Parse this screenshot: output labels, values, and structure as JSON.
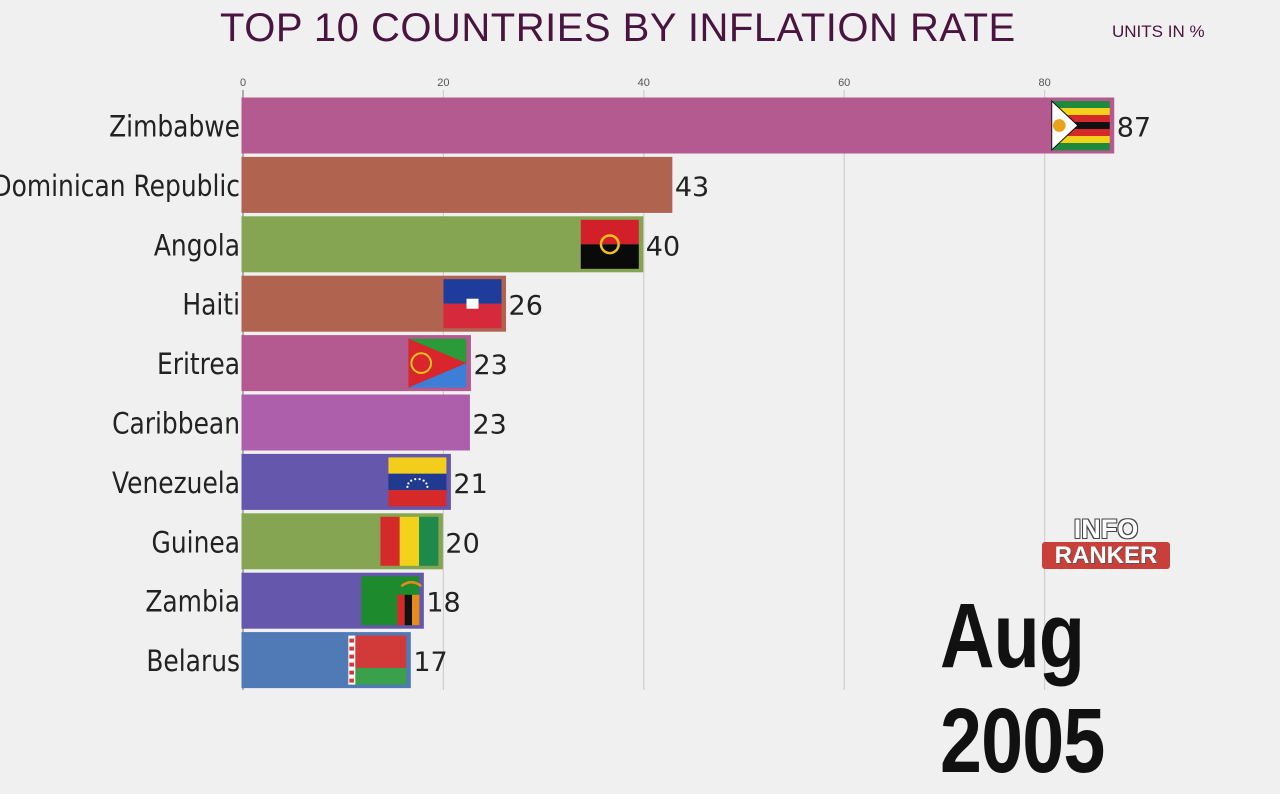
{
  "header": {
    "title": "TOP 10 COUNTRIES BY INFLATION RATE",
    "units": "UNITS IN %"
  },
  "date_label": "Aug 2005",
  "logo": {
    "line1": "INFO",
    "line2": "RANKER"
  },
  "chart_data": {
    "type": "bar",
    "orientation": "horizontal",
    "xlim": [
      0,
      87
    ],
    "x_ticks": [
      0,
      20,
      40,
      60,
      80
    ],
    "grid": true,
    "categories": [
      "Zimbabwe",
      "Dominican Republic",
      "Angola",
      "Haiti",
      "Eritrea",
      "Caribbean",
      "Venezuela",
      "Guinea",
      "Zambia",
      "Belarus"
    ],
    "values": [
      86.8,
      42.7,
      39.8,
      26.1,
      22.6,
      22.5,
      20.6,
      19.8,
      17.9,
      16.6
    ],
    "value_labels": [
      "87",
      "43",
      "40",
      "26",
      "23",
      "23",
      "21",
      "20",
      "18",
      "17"
    ],
    "colors": [
      "#b45a90",
      "#b0634f",
      "#85a552",
      "#b0634f",
      "#b45a90",
      "#ad5fac",
      "#6557ac",
      "#85a552",
      "#6557ac",
      "#4f7ab6"
    ],
    "flags": [
      "zimbabwe-flag",
      "",
      "angola-flag",
      "haiti-flag",
      "eritrea-flag",
      "",
      "venezuela-flag",
      "guinea-flag",
      "zambia-flag",
      "belarus-flag"
    ]
  }
}
